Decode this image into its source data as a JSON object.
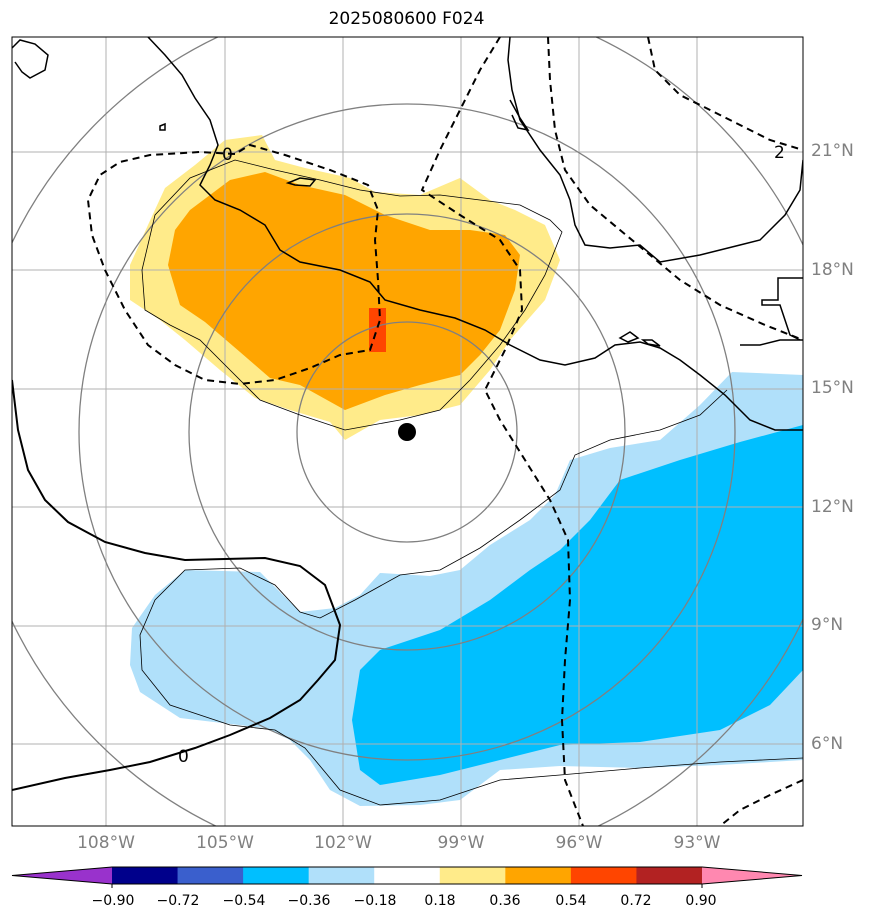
{
  "title": "2025080600 F024",
  "map": {
    "lon_range": [
      -111.0,
      -90.5
    ],
    "lat_range": [
      3.5,
      23.5
    ],
    "storm_center": {
      "lon": -100.5,
      "lat": 13.8
    },
    "range_rings": "concentric rings around storm center",
    "gridlines": true
  },
  "lat_ticks": [
    "6°N",
    "9°N",
    "12°N",
    "15°N",
    "18°N",
    "21°N"
  ],
  "lon_ticks": [
    "108°W",
    "105°W",
    "102°W",
    "99°W",
    "96°W",
    "93°W"
  ],
  "contour_labels": [
    "0",
    "0",
    "2"
  ],
  "colorbar": {
    "colors": [
      "#9932cc",
      "#00008b",
      "#3a5fcd",
      "#00bfff",
      "#b0e0fa",
      "#ffffff",
      "#ffeb8a",
      "#ffa500",
      "#ff4500",
      "#b22222",
      "#ff88b0"
    ],
    "ticks": [
      "−0.90",
      "−0.72",
      "−0.54",
      "−0.36",
      "−0.18",
      "0.18",
      "0.36",
      "0.54",
      "0.72",
      "0.90"
    ]
  }
}
